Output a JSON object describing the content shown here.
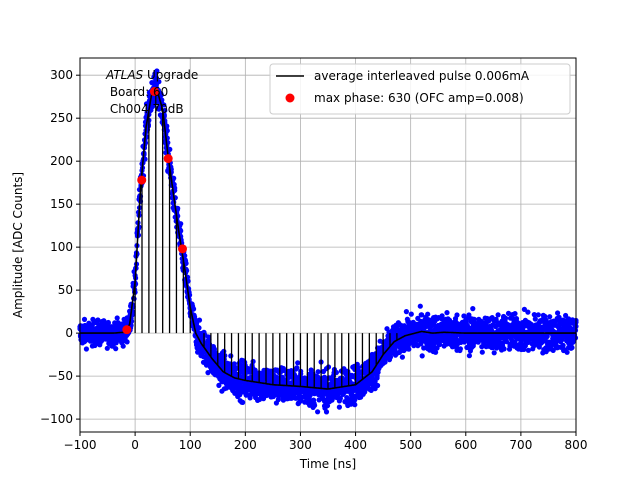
{
  "chart_data": {
    "type": "scatter",
    "title": "",
    "annotation": {
      "lines": [
        "ATLAS Upgrade",
        " Board: 60",
        " Ch004 70dB"
      ],
      "italic_word": "ATLAS",
      "rest_of_first_line": " Upgrade"
    },
    "xlabel": "Time [ns]",
    "ylabel": "Amplitude [ADC Counts]",
    "xlim": [
      -100,
      800
    ],
    "ylim": [
      -115,
      320
    ],
    "xticks": [
      -100,
      0,
      100,
      200,
      300,
      400,
      500,
      600,
      700,
      800
    ],
    "yticks": [
      -100,
      -50,
      0,
      50,
      100,
      150,
      200,
      250,
      300
    ],
    "grid": true,
    "legend_position": "top-right",
    "series": [
      {
        "name": "average interleaved pulse 0.006mA",
        "kind": "line",
        "color": "#000000",
        "points": [
          [
            -100,
            0
          ],
          [
            -40,
            0
          ],
          [
            -20,
            1
          ],
          [
            -10,
            10
          ],
          [
            0,
            60
          ],
          [
            10,
            170
          ],
          [
            20,
            240
          ],
          [
            30,
            278
          ],
          [
            40,
            282
          ],
          [
            50,
            260
          ],
          [
            60,
            205
          ],
          [
            70,
            160
          ],
          [
            80,
            115
          ],
          [
            90,
            75
          ],
          [
            100,
            30
          ],
          [
            110,
            0
          ],
          [
            120,
            -12
          ],
          [
            140,
            -30
          ],
          [
            160,
            -45
          ],
          [
            180,
            -52
          ],
          [
            200,
            -55
          ],
          [
            250,
            -60
          ],
          [
            300,
            -62
          ],
          [
            350,
            -65
          ],
          [
            400,
            -60
          ],
          [
            430,
            -45
          ],
          [
            450,
            -25
          ],
          [
            470,
            -10
          ],
          [
            490,
            -3
          ],
          [
            520,
            2
          ],
          [
            540,
            0
          ],
          [
            560,
            1
          ],
          [
            600,
            0
          ],
          [
            800,
            0
          ]
        ]
      },
      {
        "name": "",
        "kind": "scatter-band",
        "color": "#0000ff",
        "spread_points": [
          [
            -100,
            20
          ],
          [
            -20,
            20
          ],
          [
            0,
            25
          ],
          [
            50,
            30
          ],
          [
            100,
            25
          ],
          [
            150,
            30
          ],
          [
            200,
            30
          ],
          [
            300,
            30
          ],
          [
            400,
            30
          ],
          [
            450,
            30
          ],
          [
            480,
            25
          ],
          [
            500,
            30
          ],
          [
            600,
            30
          ],
          [
            700,
            30
          ],
          [
            800,
            30
          ]
        ]
      },
      {
        "name": "max phase: 630 (OFC amp=0.008)",
        "kind": "markers",
        "color": "#ff0000",
        "points": [
          [
            -15,
            4
          ],
          [
            12,
            178
          ],
          [
            35,
            281
          ],
          [
            60,
            203
          ],
          [
            86,
            98
          ]
        ]
      }
    ]
  }
}
